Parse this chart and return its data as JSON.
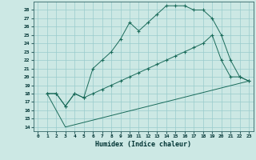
{
  "title": "",
  "xlabel": "Humidex (Indice chaleur)",
  "background_color": "#cce8e4",
  "grid_color": "#99cccc",
  "line_color": "#1a6b5a",
  "xlim": [
    -0.5,
    23.5
  ],
  "ylim": [
    13.5,
    29.0
  ],
  "xticks": [
    0,
    1,
    2,
    3,
    4,
    5,
    6,
    7,
    8,
    9,
    10,
    11,
    12,
    13,
    14,
    15,
    16,
    17,
    18,
    19,
    20,
    21,
    22,
    23
  ],
  "yticks": [
    14,
    15,
    16,
    17,
    18,
    19,
    20,
    21,
    22,
    23,
    24,
    25,
    26,
    27,
    28
  ],
  "curve1_x": [
    1,
    2,
    3,
    4,
    5,
    6,
    7,
    8,
    9,
    10,
    11,
    12,
    13,
    14,
    15,
    16,
    17,
    18,
    19,
    20,
    21,
    22,
    23
  ],
  "curve1_y": [
    18,
    18,
    16.5,
    18,
    17.5,
    21,
    22,
    23,
    24.5,
    26.5,
    25.5,
    26.5,
    27.5,
    28.5,
    28.5,
    28.5,
    28,
    28,
    27.0,
    25.0,
    22.0,
    20.0,
    19.5
  ],
  "curve2_x": [
    1,
    2,
    3,
    4,
    5,
    6,
    7,
    8,
    9,
    10,
    11,
    12,
    13,
    14,
    15,
    16,
    17,
    18,
    19,
    20,
    21,
    22,
    23
  ],
  "curve2_y": [
    18,
    18,
    16.5,
    18,
    17.5,
    18,
    18.5,
    19.0,
    19.5,
    20.0,
    20.5,
    21.0,
    21.5,
    22.0,
    22.5,
    23.0,
    23.5,
    24.0,
    25.0,
    22.0,
    20.0,
    20.0,
    19.5
  ],
  "curve3_x": [
    1,
    3,
    23
  ],
  "curve3_y": [
    18,
    14,
    19.5
  ]
}
